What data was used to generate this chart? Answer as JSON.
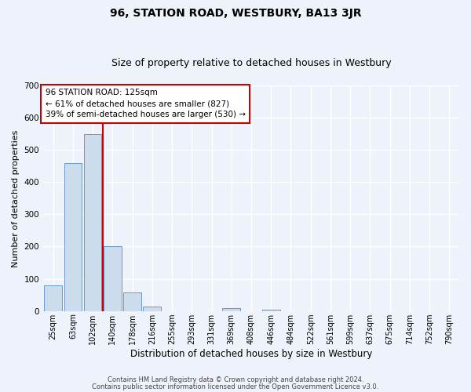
{
  "title": "96, STATION ROAD, WESTBURY, BA13 3JR",
  "subtitle": "Size of property relative to detached houses in Westbury",
  "xlabel": "Distribution of detached houses by size in Westbury",
  "ylabel": "Number of detached properties",
  "bar_labels": [
    "25sqm",
    "63sqm",
    "102sqm",
    "140sqm",
    "178sqm",
    "216sqm",
    "255sqm",
    "293sqm",
    "331sqm",
    "369sqm",
    "408sqm",
    "446sqm",
    "484sqm",
    "522sqm",
    "561sqm",
    "599sqm",
    "637sqm",
    "675sqm",
    "714sqm",
    "752sqm",
    "790sqm"
  ],
  "bar_values": [
    80,
    460,
    548,
    200,
    58,
    15,
    0,
    0,
    0,
    8,
    0,
    5,
    0,
    0,
    0,
    0,
    0,
    0,
    0,
    0,
    0
  ],
  "bar_color": "#ccdcec",
  "bar_edge_color": "#6699cc",
  "vline_color": "#cc0000",
  "vline_x": 2.5,
  "ylim": [
    0,
    700
  ],
  "yticks": [
    0,
    100,
    200,
    300,
    400,
    500,
    600,
    700
  ],
  "annotation_title": "96 STATION ROAD: 125sqm",
  "annotation_line1": "← 61% of detached houses are smaller (827)",
  "annotation_line2": "39% of semi-detached houses are larger (530) →",
  "annotation_box_color": "#cc0000",
  "footer_line1": "Contains HM Land Registry data © Crown copyright and database right 2024.",
  "footer_line2": "Contains public sector information licensed under the Open Government Licence v3.0.",
  "bg_color": "#eef2fa",
  "grid_color": "#ffffff",
  "title_fontsize": 10,
  "subtitle_fontsize": 9,
  "tick_fontsize": 7,
  "ylabel_fontsize": 8,
  "xlabel_fontsize": 8.5
}
